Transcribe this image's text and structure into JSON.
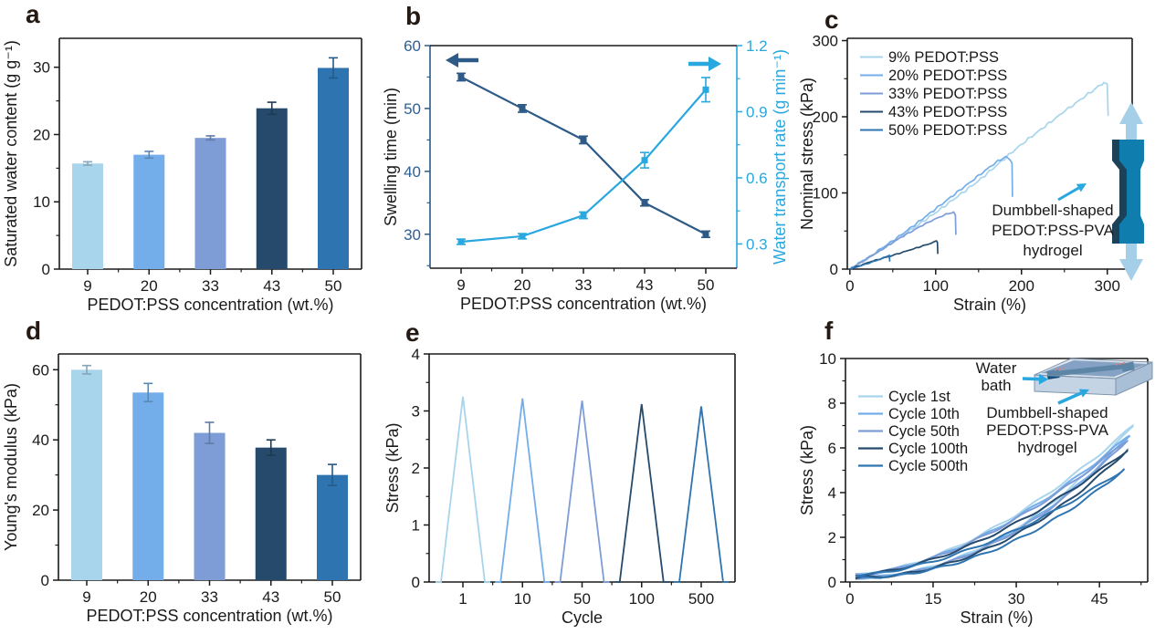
{
  "palette": {
    "series": [
      {
        "key": "9",
        "color": "#a9d5ec"
      },
      {
        "key": "20",
        "color": "#74aeea"
      },
      {
        "key": "33",
        "color": "#7e9dd6"
      },
      {
        "key": "43",
        "color": "#254a6b"
      },
      {
        "key": "50",
        "color": "#2e74b0"
      }
    ],
    "frame": "#1a1a1a",
    "navy_line": "#2d5a87",
    "navy_text": "#2d6096",
    "cyan": "#29a7df",
    "panel_letter": "#241a13",
    "teal_specimen": "#0f7dae",
    "teal_specimen_shade": "#1d4157",
    "light_arrow": "#a5cfe9",
    "box_top": "#b6c6d8",
    "box_front": "#c5d4e4",
    "box_right": "#a9bfd5",
    "water": "#5d86b5",
    "specimen_dark": "#14507f",
    "clamp_red": "#e0544e"
  },
  "chart_data": [
    {
      "id": "a",
      "letter": "a",
      "type": "bar",
      "ylabel": "Saturated water content (g g⁻¹)",
      "xlabel": "PEDOT:PSS concentration (wt.%)",
      "categories": [
        "9",
        "20",
        "33",
        "43",
        "50"
      ],
      "values": [
        15.7,
        17.0,
        19.5,
        23.9,
        29.9
      ],
      "errors": [
        0.25,
        0.5,
        0.3,
        0.9,
        1.5
      ],
      "ylim": [
        0,
        34.3
      ],
      "yticks": [
        0,
        10,
        20,
        30
      ]
    },
    {
      "id": "b",
      "letter": "b",
      "type": "line-dual",
      "xlabel": "PEDOT:PSS concentration (wt.%)",
      "ylabel_left": "Swelling time (min)",
      "ylabel_right": "Water transport rate (g min⁻¹)",
      "categories": [
        "9",
        "20",
        "33",
        "43",
        "50"
      ],
      "series": [
        {
          "name": "Swelling time",
          "axis": "left",
          "values": [
            55,
            50,
            45,
            35,
            30
          ],
          "errors": [
            0.6,
            0.6,
            0.6,
            0.5,
            0.5
          ]
        },
        {
          "name": "Water transport rate",
          "axis": "right",
          "values": [
            0.31,
            0.335,
            0.43,
            0.68,
            1.0
          ],
          "errors": [
            0.012,
            0.012,
            0.015,
            0.035,
            0.055
          ]
        }
      ],
      "ylim_left": [
        24.6,
        60
      ],
      "yticks_left": [
        30,
        40,
        50,
        60
      ],
      "ylim_right": [
        0.19,
        1.2
      ],
      "yticks_right": [
        0.3,
        0.6,
        0.9,
        1.2
      ]
    },
    {
      "id": "c",
      "letter": "c",
      "type": "line",
      "xlabel": "Strain (%)",
      "ylabel": "Nominal stress (kPa)",
      "xlim": [
        -3,
        329
      ],
      "xticks": [
        0,
        100,
        200,
        300
      ],
      "ylim": [
        0,
        303
      ],
      "yticks": [
        0,
        100,
        200,
        300
      ],
      "series": [
        {
          "name": "9% PEDOT:PSS",
          "points": [
            [
              0,
              0
            ],
            [
              25,
              17
            ],
            [
              60,
              43
            ],
            [
              100,
              74
            ],
            [
              150,
              116
            ],
            [
              200,
              164
            ],
            [
              250,
              207
            ],
            [
              285,
              236
            ],
            [
              296,
              245
            ],
            [
              300,
              243
            ],
            [
              301,
              201
            ]
          ]
        },
        {
          "name": "20% PEDOT:PSS",
          "points": [
            [
              0,
              0
            ],
            [
              25,
              18
            ],
            [
              60,
              45
            ],
            [
              100,
              79
            ],
            [
              140,
              114
            ],
            [
              170,
              140
            ],
            [
              182,
              148
            ],
            [
              187,
              143
            ],
            [
              189,
              139
            ],
            [
              189.5,
              95
            ]
          ]
        },
        {
          "name": "33% PEDOT:PSS",
          "points": [
            [
              0,
              0
            ],
            [
              25,
              17
            ],
            [
              60,
              42
            ],
            [
              90,
              61
            ],
            [
              110,
              71
            ],
            [
              121,
              75
            ],
            [
              123,
              71
            ],
            [
              123.5,
              45
            ]
          ]
        },
        {
          "name": "43% PEDOT:PSS",
          "points": [
            [
              0,
              0
            ],
            [
              25,
              10
            ],
            [
              50,
              18
            ],
            [
              75,
              27
            ],
            [
              95,
              34
            ],
            [
              101,
              37
            ],
            [
              102,
              35
            ],
            [
              102.5,
              20
            ]
          ]
        },
        {
          "name": "50% PEDOT:PSS",
          "points": [
            [
              0,
              0
            ],
            [
              20,
              7
            ],
            [
              35,
              13
            ],
            [
              44,
              17
            ],
            [
              46,
              18
            ],
            [
              46.5,
              10
            ]
          ]
        }
      ],
      "inset": {
        "lines": [
          "Dumbbell-shaped",
          "PEDOT:PSS-PVA",
          "hydrogel"
        ]
      }
    },
    {
      "id": "d",
      "letter": "d",
      "type": "bar",
      "ylabel": "Young's modulus (kPa)",
      "xlabel": "PEDOT:PSS concentration (wt.%)",
      "categories": [
        "9",
        "20",
        "33",
        "43",
        "50"
      ],
      "values": [
        60,
        53.5,
        42,
        37.8,
        30
      ],
      "errors": [
        1.2,
        2.6,
        3.0,
        2.2,
        3.0
      ],
      "ylim": [
        0,
        64.5
      ],
      "yticks": [
        0,
        20,
        40,
        60
      ]
    },
    {
      "id": "e",
      "letter": "e",
      "type": "peaks",
      "ylabel": "Stress (kPa)",
      "xlabel": "Cycle",
      "categories": [
        "1",
        "10",
        "50",
        "100",
        "500"
      ],
      "peaks": [
        3.25,
        3.22,
        3.18,
        3.12,
        3.08
      ],
      "ylim": [
        0,
        4
      ],
      "yticks": [
        0,
        1,
        2,
        3,
        4
      ]
    },
    {
      "id": "f",
      "letter": "f",
      "type": "loops",
      "ylabel": "Stress (kPa)",
      "xlabel": "Strain (%)",
      "xlim": [
        -0.8,
        53.7
      ],
      "xticks": [
        0,
        15,
        30,
        45
      ],
      "ylim": [
        0,
        10
      ],
      "yticks": [
        0,
        2,
        4,
        6,
        8,
        10
      ],
      "loop_start": 0.3,
      "series": [
        {
          "name": "Cycle 1st",
          "peak": 7.0,
          "x_end": 51
        },
        {
          "name": "Cycle 10th",
          "peak": 6.6,
          "x_end": 50.5
        },
        {
          "name": "Cycle 50th",
          "peak": 6.35,
          "x_end": 50
        },
        {
          "name": "Cycle 100th",
          "peak": 5.9,
          "x_end": 50
        },
        {
          "name": "Cycle 500th",
          "peak": 5.05,
          "x_end": 49.5
        }
      ],
      "inset": {
        "bath_lines": [
          "Water",
          "bath"
        ],
        "label_lines": [
          "Dumbbell-shaped",
          "PEDOT:PSS-PVA",
          "hydrogel"
        ]
      }
    }
  ]
}
